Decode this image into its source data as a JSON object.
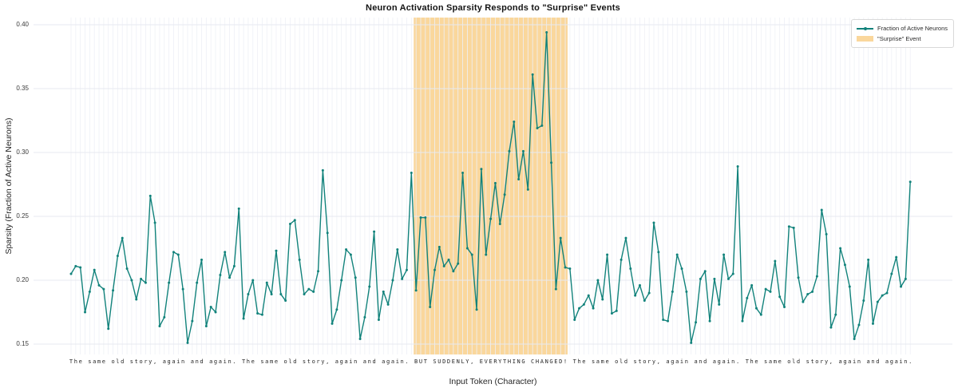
{
  "title": "Neuron Activation Sparsity Responds to \"Surprise\" Events",
  "legend": {
    "series_label": "Fraction of Active Neurons",
    "event_label": "\"Surprise\" Event"
  },
  "axes": {
    "xlabel": "Input Token (Character)",
    "ylabel": "Sparsity (Fraction of Active Neurons)"
  },
  "colors": {
    "line": "#11827b",
    "band": "rgba(245,166,35,0.45)",
    "grid_h": "#e7e9f0",
    "grid_v": "#eef0f6",
    "background": "#ffffff"
  },
  "chart_data": {
    "type": "line",
    "title": "Neuron Activation Sparsity Responds to \"Surprise\" Events",
    "xlabel": "Input Token (Character)",
    "ylabel": "Sparsity (Fraction of Active Neurons)",
    "grid": true,
    "legend_position": "upper right",
    "yticks": [
      0.15,
      0.2,
      0.25,
      0.3,
      0.35,
      0.4
    ],
    "ylim": [
      0.1419,
      0.4056
    ],
    "x_tick_characters": "The same old story, again and again. The same old story, again and again. BUT SUDDENLY, EVERYTHING CHANGED! The same old story, again and again. The same old story, again and again.",
    "surprise_event_span": {
      "text": "BUT SUDDENLY, EVERYTHING CHANGED!",
      "start_index": 73.5,
      "end_index": 106.5
    },
    "series": [
      {
        "name": "Fraction of Active Neurons",
        "values": [
          0.205,
          0.211,
          0.21,
          0.175,
          0.191,
          0.208,
          0.196,
          0.193,
          0.162,
          0.192,
          0.219,
          0.233,
          0.209,
          0.2,
          0.185,
          0.201,
          0.198,
          0.266,
          0.245,
          0.164,
          0.171,
          0.198,
          0.222,
          0.22,
          0.193,
          0.151,
          0.168,
          0.198,
          0.216,
          0.164,
          0.179,
          0.175,
          0.204,
          0.222,
          0.202,
          0.211,
          0.256,
          0.17,
          0.189,
          0.2,
          0.174,
          0.173,
          0.198,
          0.189,
          0.223,
          0.189,
          0.184,
          0.244,
          0.247,
          0.216,
          0.189,
          0.193,
          0.191,
          0.207,
          0.286,
          0.237,
          0.166,
          0.177,
          0.2,
          0.224,
          0.22,
          0.202,
          0.154,
          0.171,
          0.195,
          0.238,
          0.169,
          0.191,
          0.181,
          0.2,
          0.224,
          0.201,
          0.208,
          0.284,
          0.192,
          0.249,
          0.249,
          0.179,
          0.208,
          0.226,
          0.211,
          0.216,
          0.207,
          0.213,
          0.284,
          0.225,
          0.22,
          0.177,
          0.287,
          0.22,
          0.248,
          0.276,
          0.244,
          0.267,
          0.301,
          0.324,
          0.279,
          0.301,
          0.271,
          0.361,
          0.319,
          0.321,
          0.394,
          0.292,
          0.193,
          0.233,
          0.21,
          0.209,
          0.169,
          0.178,
          0.181,
          0.188,
          0.178,
          0.2,
          0.185,
          0.22,
          0.174,
          0.176,
          0.216,
          0.233,
          0.209,
          0.188,
          0.196,
          0.184,
          0.19,
          0.245,
          0.222,
          0.169,
          0.168,
          0.191,
          0.22,
          0.209,
          0.191,
          0.151,
          0.167,
          0.201,
          0.207,
          0.168,
          0.201,
          0.181,
          0.22,
          0.201,
          0.205,
          0.289,
          0.168,
          0.186,
          0.196,
          0.178,
          0.173,
          0.193,
          0.191,
          0.215,
          0.187,
          0.179,
          0.242,
          0.241,
          0.202,
          0.183,
          0.189,
          0.191,
          0.203,
          0.255,
          0.236,
          0.163,
          0.173,
          0.225,
          0.212,
          0.195,
          0.154,
          0.165,
          0.184,
          0.216,
          0.166,
          0.183,
          0.188,
          0.19,
          0.205,
          0.218,
          0.195,
          0.201,
          0.277
        ]
      }
    ]
  }
}
